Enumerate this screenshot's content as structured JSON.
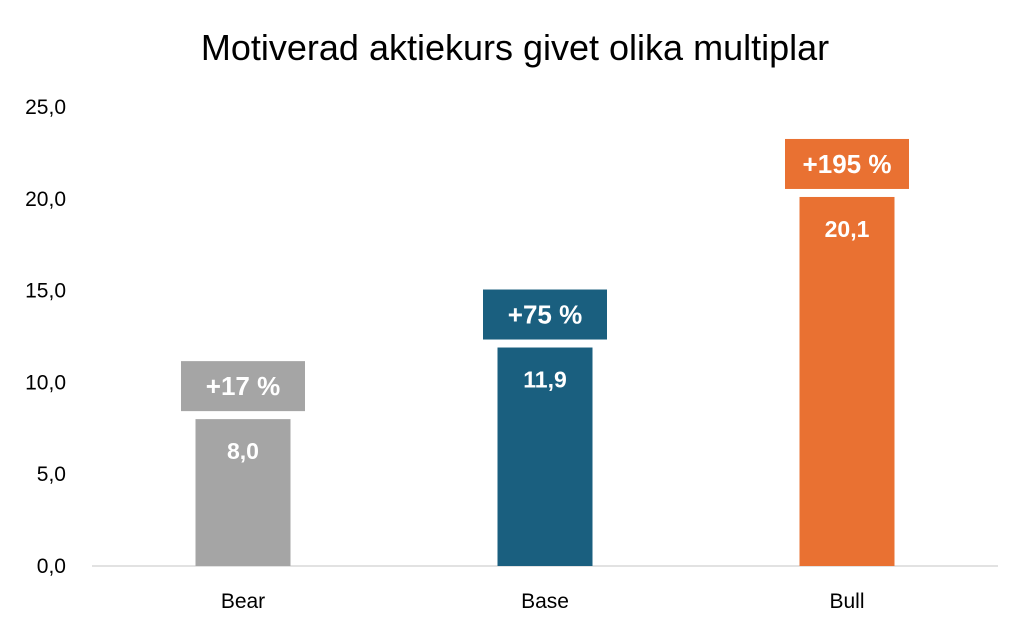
{
  "chart_data": {
    "type": "bar",
    "title": "Motiverad aktiekurs givet olika multiplar",
    "categories": [
      "Bear",
      "Base",
      "Bull"
    ],
    "values": [
      8.0,
      11.9,
      20.1
    ],
    "value_labels": [
      "8,0",
      "11,9",
      "20,1"
    ],
    "upside_labels": [
      "+17 %",
      "+75 %",
      "+195 %"
    ],
    "colors": [
      "#a5a5a5",
      "#1a5f7f",
      "#e97132"
    ],
    "yticks": [
      "0,0",
      "5,0",
      "10,0",
      "15,0",
      "20,0",
      "25,0"
    ],
    "ylim": [
      0,
      25
    ],
    "grid": false,
    "xlabel": "",
    "ylabel": ""
  }
}
